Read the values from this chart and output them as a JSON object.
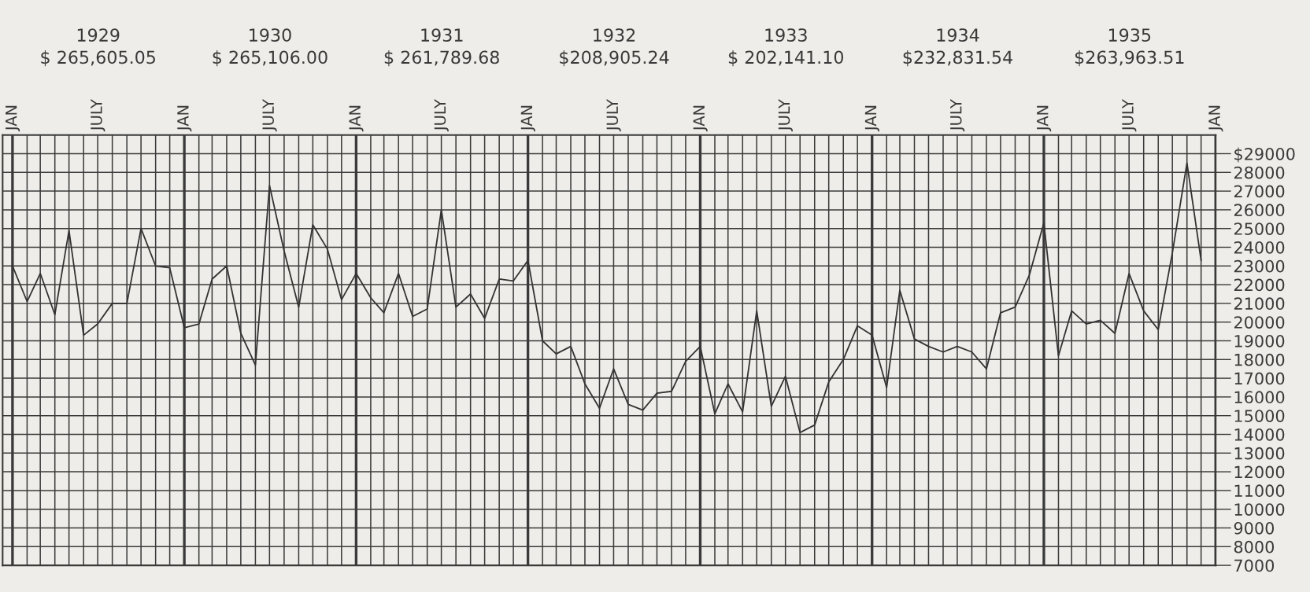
{
  "chart_data": {
    "type": "line",
    "x": [
      "1929-01",
      "1929-02",
      "1929-03",
      "1929-04",
      "1929-05",
      "1929-06",
      "1929-07",
      "1929-08",
      "1929-09",
      "1929-10",
      "1929-11",
      "1929-12",
      "1930-01",
      "1930-02",
      "1930-03",
      "1930-04",
      "1930-05",
      "1930-06",
      "1930-07",
      "1930-08",
      "1930-09",
      "1930-10",
      "1930-11",
      "1930-12",
      "1931-01",
      "1931-02",
      "1931-03",
      "1931-04",
      "1931-05",
      "1931-06",
      "1931-07",
      "1931-08",
      "1931-09",
      "1931-10",
      "1931-11",
      "1931-12",
      "1932-01",
      "1932-02",
      "1932-03",
      "1932-04",
      "1932-05",
      "1932-06",
      "1932-07",
      "1932-08",
      "1932-09",
      "1932-10",
      "1932-11",
      "1932-12",
      "1933-01",
      "1933-02",
      "1933-03",
      "1933-04",
      "1933-05",
      "1933-06",
      "1933-07",
      "1933-08",
      "1933-09",
      "1933-10",
      "1933-11",
      "1933-12",
      "1934-01",
      "1934-02",
      "1934-03",
      "1934-04",
      "1934-05",
      "1934-06",
      "1934-07",
      "1934-08",
      "1934-09",
      "1934-10",
      "1934-11",
      "1934-12",
      "1935-01",
      "1935-02",
      "1935-03",
      "1935-04",
      "1935-05",
      "1935-06",
      "1935-07",
      "1935-08",
      "1935-09",
      "1935-10",
      "1935-11",
      "1935-12"
    ],
    "series": [
      {
        "color": "#333333",
        "values": [
          23000,
          21100,
          22600,
          20400,
          24900,
          19300,
          19900,
          21000,
          21000,
          25000,
          23000,
          22900,
          19700,
          19900,
          22300,
          23000,
          19400,
          17700,
          27300,
          23800,
          20800,
          25200,
          23900,
          21200,
          22600,
          21300,
          20500,
          22600,
          20300,
          20700,
          26000,
          20800,
          21500,
          20200,
          22300,
          22200,
          23300,
          19000,
          18300,
          18700,
          16700,
          15400,
          17500,
          15600,
          15300,
          16200,
          16300,
          17900,
          18700,
          15100,
          16700,
          15200,
          20600,
          15500,
          17100,
          14100,
          14500,
          16800,
          18000,
          19800,
          19300,
          16500,
          21700,
          19100,
          18700,
          18400,
          18700,
          18400,
          17500,
          20500,
          20800,
          22500,
          25300,
          18200,
          20600,
          19900,
          20100,
          19400,
          22600,
          20600,
          19600,
          23700,
          28500,
          23300
        ]
      }
    ],
    "xlim": [
      "1928-12-11",
      "1936-01-01"
    ],
    "xticks": [
      {
        "value": "1929-01",
        "label": "JAN"
      },
      {
        "value": "1929-02",
        "label": null
      },
      {
        "value": "1929-03",
        "label": null
      },
      {
        "value": "1929-04",
        "label": null
      },
      {
        "value": "1929-05",
        "label": null
      },
      {
        "value": "1929-06",
        "label": null
      },
      {
        "value": "1929-07",
        "label": "JULY"
      },
      {
        "value": "1929-08",
        "label": null
      },
      {
        "value": "1929-09",
        "label": null
      },
      {
        "value": "1929-10",
        "label": null
      },
      {
        "value": "1929-11",
        "label": null
      },
      {
        "value": "1929-12",
        "label": null
      },
      {
        "value": "1930-01",
        "label": "JAN"
      },
      {
        "value": "1930-02",
        "label": null
      },
      {
        "value": "1930-03",
        "label": null
      },
      {
        "value": "1930-04",
        "label": null
      },
      {
        "value": "1930-05",
        "label": null
      },
      {
        "value": "1930-06",
        "label": null
      },
      {
        "value": "1930-07",
        "label": "JULY"
      },
      {
        "value": "1930-08",
        "label": null
      },
      {
        "value": "1930-09",
        "label": null
      },
      {
        "value": "1930-10",
        "label": null
      },
      {
        "value": "1930-11",
        "label": null
      },
      {
        "value": "1930-12",
        "label": null
      },
      {
        "value": "1931-01",
        "label": "JAN"
      },
      {
        "value": "1931-02",
        "label": null
      },
      {
        "value": "1931-03",
        "label": null
      },
      {
        "value": "1931-04",
        "label": null
      },
      {
        "value": "1931-05",
        "label": null
      },
      {
        "value": "1931-06",
        "label": null
      },
      {
        "value": "1931-07",
        "label": "JULY"
      },
      {
        "value": "1931-08",
        "label": null
      },
      {
        "value": "1931-09",
        "label": null
      },
      {
        "value": "1931-10",
        "label": null
      },
      {
        "value": "1931-11",
        "label": null
      },
      {
        "value": "1931-12",
        "label": null
      },
      {
        "value": "1932-01",
        "label": "JAN"
      },
      {
        "value": "1932-02",
        "label": null
      },
      {
        "value": "1932-03",
        "label": null
      },
      {
        "value": "1932-04",
        "label": null
      },
      {
        "value": "1932-05",
        "label": null
      },
      {
        "value": "1932-06",
        "label": null
      },
      {
        "value": "1932-07",
        "label": "JULY"
      },
      {
        "value": "1932-08",
        "label": null
      },
      {
        "value": "1932-09",
        "label": null
      },
      {
        "value": "1932-10",
        "label": null
      },
      {
        "value": "1932-11",
        "label": null
      },
      {
        "value": "1932-12",
        "label": null
      },
      {
        "value": "1933-01",
        "label": "JAN"
      },
      {
        "value": "1933-02",
        "label": null
      },
      {
        "value": "1933-03",
        "label": null
      },
      {
        "value": "1933-04",
        "label": null
      },
      {
        "value": "1933-05",
        "label": null
      },
      {
        "value": "1933-06",
        "label": null
      },
      {
        "value": "1933-07",
        "label": "JULY"
      },
      {
        "value": "1933-08",
        "label": null
      },
      {
        "value": "1933-09",
        "label": null
      },
      {
        "value": "1933-10",
        "label": null
      },
      {
        "value": "1933-11",
        "label": null
      },
      {
        "value": "1933-12",
        "label": null
      },
      {
        "value": "1934-01",
        "label": "JAN"
      },
      {
        "value": "1934-02",
        "label": null
      },
      {
        "value": "1934-03",
        "label": null
      },
      {
        "value": "1934-04",
        "label": null
      },
      {
        "value": "1934-05",
        "label": null
      },
      {
        "value": "1934-06",
        "label": null
      },
      {
        "value": "1934-07",
        "label": "JULY"
      },
      {
        "value": "1934-08",
        "label": null
      },
      {
        "value": "1934-09",
        "label": null
      },
      {
        "value": "1934-10",
        "label": null
      },
      {
        "value": "1934-11",
        "label": null
      },
      {
        "value": "1934-12",
        "label": null
      },
      {
        "value": "1935-01",
        "label": "JAN"
      },
      {
        "value": "1935-02",
        "label": null
      },
      {
        "value": "1935-03",
        "label": null
      },
      {
        "value": "1935-04",
        "label": null
      },
      {
        "value": "1935-05",
        "label": null
      },
      {
        "value": "1935-06",
        "label": null
      },
      {
        "value": "1935-07",
        "label": "JULY"
      },
      {
        "value": "1935-08",
        "label": null
      },
      {
        "value": "1935-09",
        "label": null
      },
      {
        "value": "1935-10",
        "label": null
      },
      {
        "value": "1935-11",
        "label": null
      },
      {
        "value": "1935-12",
        "label": null
      },
      {
        "value": "1936-01",
        "label": "JAN"
      }
    ],
    "x2lim": [
      "1928-12-11",
      "1936-01-01"
    ],
    "x2ticks": [
      {
        "value": "1929-07-02",
        "label": "1929\n$ 265,605.05"
      },
      {
        "value": "1930-07-02",
        "label": "1930\n$ 265,106.00"
      },
      {
        "value": "1931-07-02",
        "label": "1931\n$ 261,789.68"
      },
      {
        "value": "1932-07-02",
        "label": "1932\n$208,905.24"
      },
      {
        "value": "1933-07-02",
        "label": "1933\n$ 202,141.10"
      },
      {
        "value": "1934-07-02",
        "label": "1934\n$232,831.54"
      },
      {
        "value": "1935-07-02",
        "label": "1935\n$263,963.51"
      }
    ],
    "ylim": [
      7000,
      30000
    ],
    "yticks": [
      7000,
      8000,
      9000,
      10000,
      11000,
      12000,
      13000,
      14000,
      15000,
      16000,
      17000,
      18000,
      19000,
      20000,
      21000,
      22000,
      23000,
      24000,
      25000,
      26000,
      27000,
      28000,
      {
        "value": 29000,
        "label": "$29000"
      }
    ],
    "grid": true,
    "marker": "none",
    "line_style": "solid"
  }
}
